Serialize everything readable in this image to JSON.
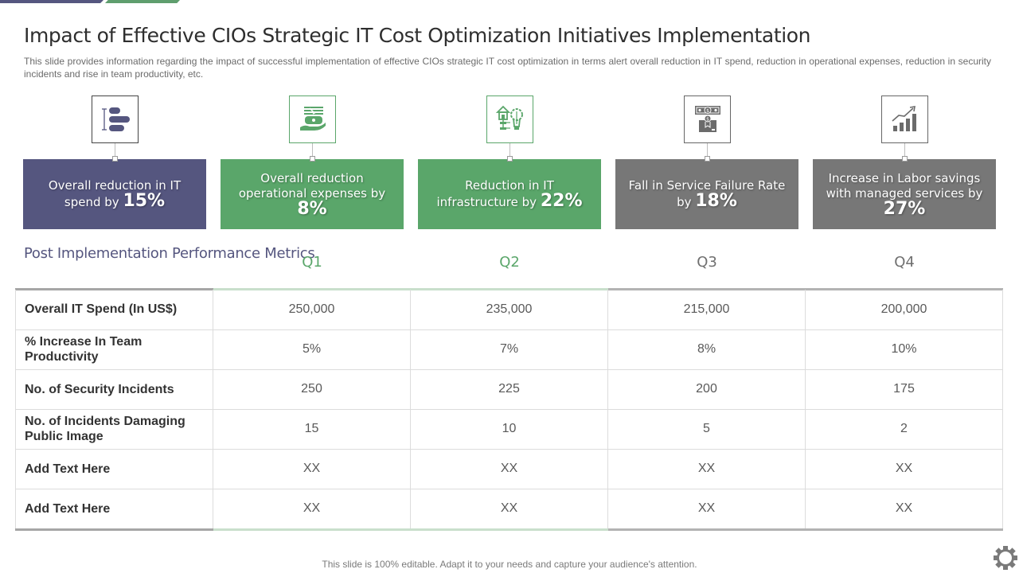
{
  "title": "Impact of Effective CIOs Strategic IT Cost Optimization Initiatives Implementation",
  "subtitle": "This slide provides information regarding the impact of successful implementation of effective CIOs strategic IT cost optimization in terms alert overall reduction in IT spend, reduction in operational expenses, reduction in security incidents and rise in team productivity, etc.",
  "colors": {
    "purple": "#55567f",
    "green": "#5aa66a",
    "gray": "#777777"
  },
  "cards": [
    {
      "icon": "gantt-bars-icon",
      "text": "Overall reduction in IT spend by",
      "value": "15%",
      "theme": "purple"
    },
    {
      "icon": "money-hand-icon",
      "text": "Overall reduction operational expenses by",
      "value": "8%",
      "theme": "green"
    },
    {
      "icon": "infrastructure-bulb-icon",
      "text": "Reduction in IT infrastructure by",
      "value": "22%",
      "theme": "green"
    },
    {
      "icon": "money-award-box-icon",
      "text": "Fall in Service Failure Rate by",
      "value": "18%",
      "theme": "gray"
    },
    {
      "icon": "growth-chart-icon",
      "text": "Increase in Labor savings with managed services by",
      "value": "27%",
      "theme": "gray"
    }
  ],
  "table": {
    "title": "Post Implementation Performance Metrics",
    "columns": [
      "Q1",
      "Q2",
      "Q3",
      "Q4"
    ],
    "rows": [
      {
        "label": "Overall IT Spend (In US$)",
        "values": [
          "250,000",
          "235,000",
          "215,000",
          "200,000"
        ]
      },
      {
        "label": "% Increase In Team Productivity",
        "values": [
          "5%",
          "7%",
          "8%",
          "10%"
        ]
      },
      {
        "label": "No. of Security Incidents",
        "values": [
          "250",
          "225",
          "200",
          "175"
        ]
      },
      {
        "label": "No. of Incidents Damaging Public Image",
        "values": [
          "15",
          "10",
          "5",
          "2"
        ]
      },
      {
        "label": "Add Text Here",
        "values": [
          "XX",
          "XX",
          "XX",
          "XX"
        ]
      },
      {
        "label": "Add Text Here",
        "values": [
          "XX",
          "XX",
          "XX",
          "XX"
        ]
      }
    ]
  },
  "footer": "This slide is 100% editable. Adapt it to your needs and capture your audience's attention.",
  "footer_icon": "gear-icon"
}
